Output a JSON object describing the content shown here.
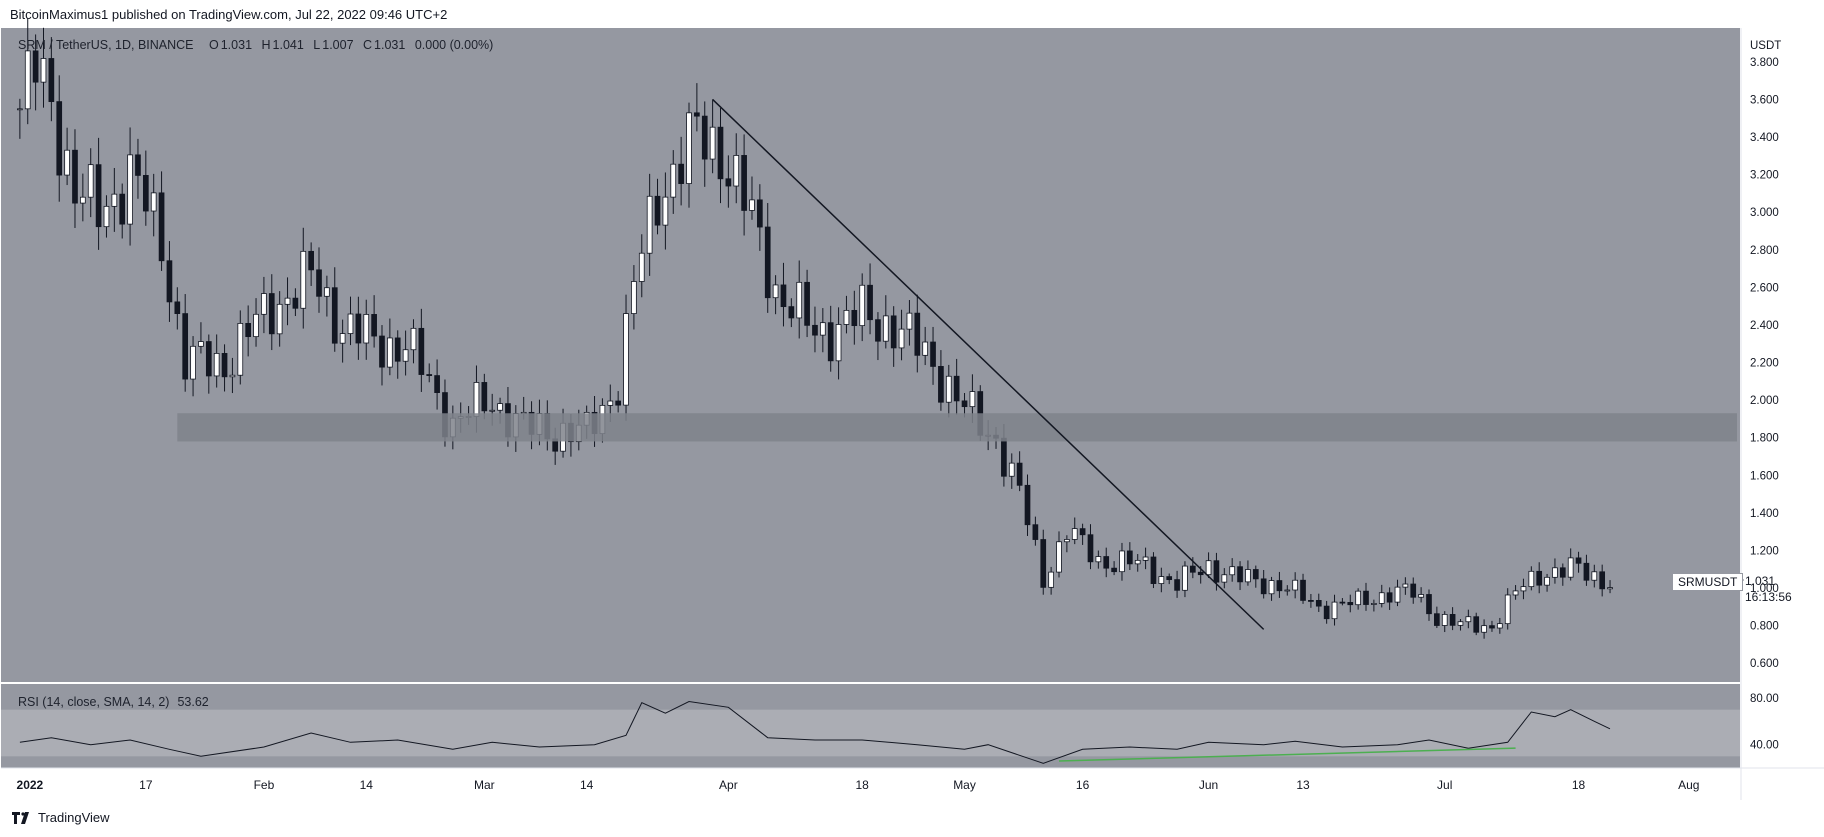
{
  "header": {
    "publisher_text": "BitcoinMaximus1 published on TradingView.com, Jul 22, 2022 09:46 UTC+2"
  },
  "legend": {
    "symbol": "SRM / TetherUS, 1D, BINANCE",
    "open_key": "O",
    "open": "1.031",
    "high_key": "H",
    "high": "1.041",
    "low_key": "L",
    "low": "1.007",
    "close_key": "C",
    "close": "1.031",
    "change": "0.000 (0.00%)"
  },
  "price_axis": {
    "currency": "USDT",
    "ticks": [
      "3.800",
      "3.600",
      "3.400",
      "3.200",
      "3.000",
      "2.800",
      "2.600",
      "2.400",
      "2.200",
      "2.000",
      "1.800",
      "1.600",
      "1.400",
      "1.200",
      "1.000",
      "0.800",
      "0.600"
    ]
  },
  "price_tag": {
    "symbol": "SRMUSDT",
    "last_price": "1.031",
    "countdown": "16:13:56"
  },
  "rsi": {
    "label": "RSI (14, close, SMA, 14, 2)",
    "value": "53.62",
    "ticks": [
      "80.00",
      "40.00"
    ]
  },
  "time_axis": {
    "labels": [
      "2022",
      "17",
      "Feb",
      "14",
      "Mar",
      "14",
      "Apr",
      "18",
      "May",
      "16",
      "Jun",
      "13",
      "Jul",
      "18",
      "Aug"
    ]
  },
  "footer": {
    "brand": "TradingView"
  },
  "colors": {
    "chart_bg": "#9598a1",
    "rsi_band": "#abadb4",
    "zone": "#7f828b",
    "bull_candle": "#ffffff",
    "bear_candle": "#131722",
    "rsi_divergence": "#4caf50"
  },
  "chart_data": [
    {
      "type": "candlestick",
      "title": "SRM / TetherUS, 1D, BINANCE",
      "ylabel": "USDT",
      "ylim": [
        0.5,
        3.98
      ],
      "x_range": [
        "2021-12-31",
        "2022-08-07"
      ],
      "keypoints": [
        {
          "x": "2022-01-01",
          "y": 3.55
        },
        {
          "x": "2022-01-03",
          "y": 3.75
        },
        {
          "x": "2022-01-05",
          "y": 3.6
        },
        {
          "x": "2022-01-08",
          "y": 3.1
        },
        {
          "x": "2022-01-11",
          "y": 3.0
        },
        {
          "x": "2022-01-15",
          "y": 3.2
        },
        {
          "x": "2022-01-19",
          "y": 2.85
        },
        {
          "x": "2022-01-22",
          "y": 2.2
        },
        {
          "x": "2022-01-27",
          "y": 2.2
        },
        {
          "x": "2022-02-02",
          "y": 2.5
        },
        {
          "x": "2022-02-07",
          "y": 2.65
        },
        {
          "x": "2022-02-11",
          "y": 2.4
        },
        {
          "x": "2022-02-15",
          "y": 2.3
        },
        {
          "x": "2022-02-19",
          "y": 2.3
        },
        {
          "x": "2022-02-25",
          "y": 1.88
        },
        {
          "x": "2022-03-02",
          "y": 2.0
        },
        {
          "x": "2022-03-06",
          "y": 1.85
        },
        {
          "x": "2022-03-14",
          "y": 1.82
        },
        {
          "x": "2022-03-18",
          "y": 2.1
        },
        {
          "x": "2022-03-20",
          "y": 2.6
        },
        {
          "x": "2022-03-23",
          "y": 3.1
        },
        {
          "x": "2022-03-28",
          "y": 3.4
        },
        {
          "x": "2022-03-31",
          "y": 3.35
        },
        {
          "x": "2022-04-04",
          "y": 2.95
        },
        {
          "x": "2022-04-07",
          "y": 2.6
        },
        {
          "x": "2022-04-12",
          "y": 2.35
        },
        {
          "x": "2022-04-18",
          "y": 2.45
        },
        {
          "x": "2022-04-22",
          "y": 2.4
        },
        {
          "x": "2022-04-27",
          "y": 2.2
        },
        {
          "x": "2022-05-01",
          "y": 1.95
        },
        {
          "x": "2022-05-05",
          "y": 1.8
        },
        {
          "x": "2022-05-08",
          "y": 1.5
        },
        {
          "x": "2022-05-11",
          "y": 1.05
        },
        {
          "x": "2022-05-14",
          "y": 1.3
        },
        {
          "x": "2022-05-18",
          "y": 1.15
        },
        {
          "x": "2022-05-24",
          "y": 1.12
        },
        {
          "x": "2022-05-28",
          "y": 1.02
        },
        {
          "x": "2022-06-01",
          "y": 1.12
        },
        {
          "x": "2022-06-05",
          "y": 1.05
        },
        {
          "x": "2022-06-10",
          "y": 1.02
        },
        {
          "x": "2022-06-15",
          "y": 0.9
        },
        {
          "x": "2022-06-20",
          "y": 0.92
        },
        {
          "x": "2022-06-24",
          "y": 0.98
        },
        {
          "x": "2022-06-27",
          "y": 0.97
        },
        {
          "x": "2022-06-30",
          "y": 0.85
        },
        {
          "x": "2022-07-03",
          "y": 0.8
        },
        {
          "x": "2022-07-07",
          "y": 0.8
        },
        {
          "x": "2022-07-10",
          "y": 0.97
        },
        {
          "x": "2022-07-13",
          "y": 1.08
        },
        {
          "x": "2022-07-18",
          "y": 1.1
        },
        {
          "x": "2022-07-22",
          "y": 1.031
        }
      ],
      "support_zone": {
        "from": "2022-01-21",
        "y_low": 1.78,
        "y_high": 1.93
      },
      "trendline": {
        "start": {
          "x": "2022-03-30",
          "y": 3.6
        },
        "end": {
          "x": "2022-06-08",
          "y": 0.78
        }
      }
    },
    {
      "type": "line",
      "title": "RSI (14, close, SMA, 14, 2)",
      "ylim": [
        20,
        92
      ],
      "bands": [
        30,
        70
      ],
      "series": [
        {
          "values": [
            {
              "x": "2022-01-01",
              "y": 42
            },
            {
              "x": "2022-01-05",
              "y": 46
            },
            {
              "x": "2022-01-10",
              "y": 40
            },
            {
              "x": "2022-01-15",
              "y": 44
            },
            {
              "x": "2022-01-20",
              "y": 36
            },
            {
              "x": "2022-01-24",
              "y": 30
            },
            {
              "x": "2022-02-01",
              "y": 38
            },
            {
              "x": "2022-02-07",
              "y": 50
            },
            {
              "x": "2022-02-12",
              "y": 42
            },
            {
              "x": "2022-02-18",
              "y": 44
            },
            {
              "x": "2022-02-25",
              "y": 36
            },
            {
              "x": "2022-03-02",
              "y": 42
            },
            {
              "x": "2022-03-08",
              "y": 38
            },
            {
              "x": "2022-03-15",
              "y": 40
            },
            {
              "x": "2022-03-19",
              "y": 48
            },
            {
              "x": "2022-03-21",
              "y": 76
            },
            {
              "x": "2022-03-24",
              "y": 67
            },
            {
              "x": "2022-03-27",
              "y": 77
            },
            {
              "x": "2022-04-01",
              "y": 72
            },
            {
              "x": "2022-04-06",
              "y": 46
            },
            {
              "x": "2022-04-12",
              "y": 44
            },
            {
              "x": "2022-04-18",
              "y": 44
            },
            {
              "x": "2022-04-25",
              "y": 40
            },
            {
              "x": "2022-05-01",
              "y": 36
            },
            {
              "x": "2022-05-04",
              "y": 40
            },
            {
              "x": "2022-05-11",
              "y": 24
            },
            {
              "x": "2022-05-16",
              "y": 36
            },
            {
              "x": "2022-05-22",
              "y": 38
            },
            {
              "x": "2022-05-28",
              "y": 36
            },
            {
              "x": "2022-06-01",
              "y": 42
            },
            {
              "x": "2022-06-08",
              "y": 40
            },
            {
              "x": "2022-06-12",
              "y": 43
            },
            {
              "x": "2022-06-18",
              "y": 38
            },
            {
              "x": "2022-06-25",
              "y": 40
            },
            {
              "x": "2022-06-29",
              "y": 44
            },
            {
              "x": "2022-07-04",
              "y": 37
            },
            {
              "x": "2022-07-09",
              "y": 42
            },
            {
              "x": "2022-07-12",
              "y": 68
            },
            {
              "x": "2022-07-15",
              "y": 64
            },
            {
              "x": "2022-07-17",
              "y": 70
            },
            {
              "x": "2022-07-20",
              "y": 60
            },
            {
              "x": "2022-07-22",
              "y": 53.62
            }
          ]
        }
      ],
      "divergence_line": {
        "start": {
          "x": "2022-05-13",
          "y": 26
        },
        "end": {
          "x": "2022-07-10",
          "y": 37
        }
      }
    }
  ]
}
